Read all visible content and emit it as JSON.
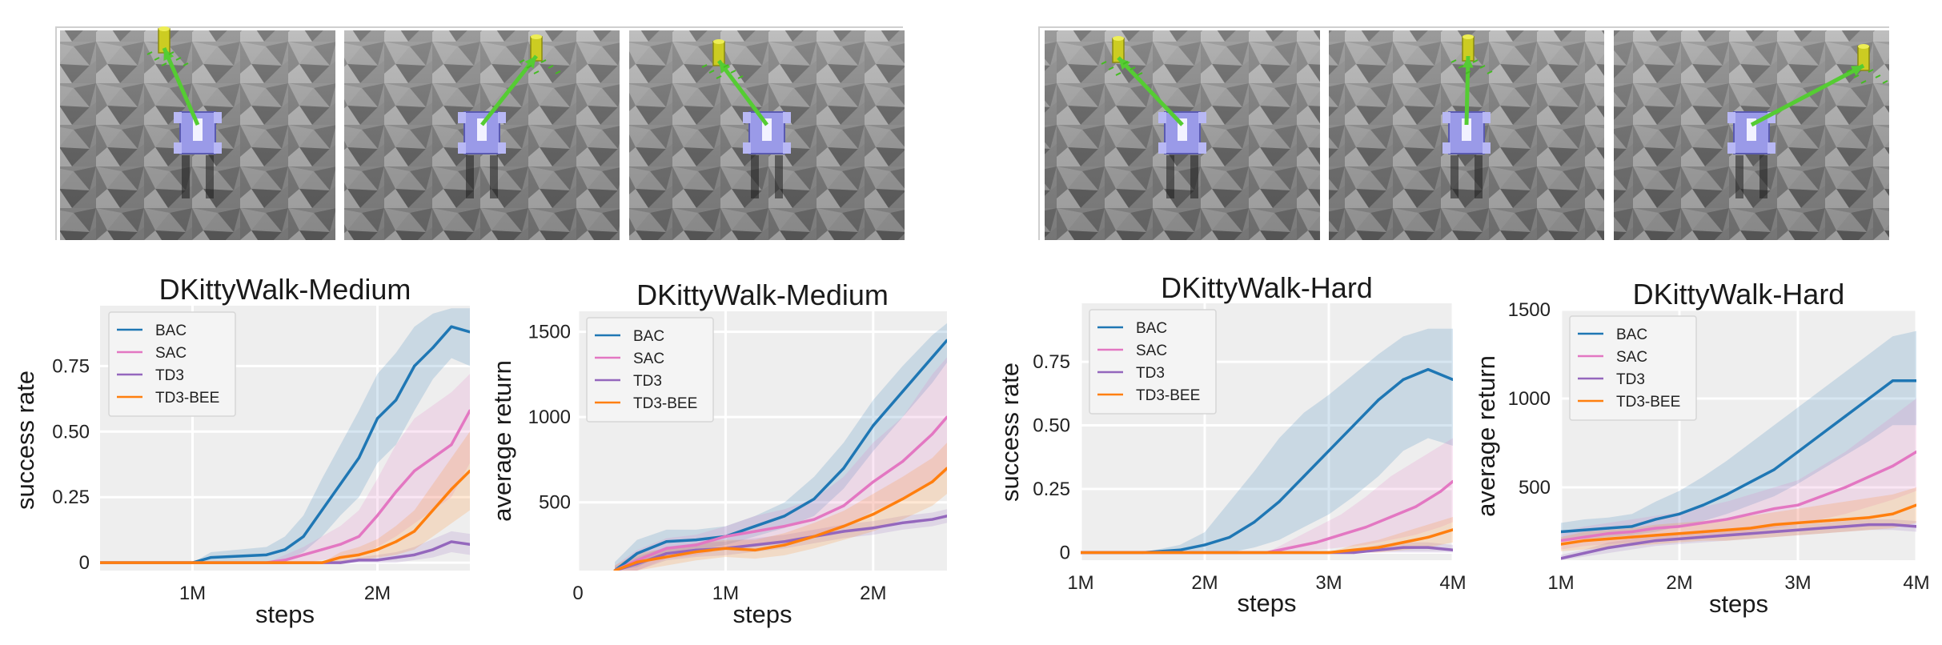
{
  "colors": {
    "BAC": "#1f77b4",
    "SAC": "#e377c2",
    "TD3": "#9467bd",
    "TD3-BEE": "#ff7f0e",
    "plot_bg": "#eeeeee",
    "grid": "#ffffff"
  },
  "images": [
    {
      "panel": "left",
      "frames": 3,
      "content": "D'Kitty robot walking on rough grey terrain toward a yellow target cylinder, green arrow showing heading"
    },
    {
      "panel": "right",
      "frames": 3,
      "content": "D'Kitty robot walking on rough grey terrain toward a yellow target cylinder, green arrow showing heading"
    }
  ],
  "chart_data": [
    {
      "type": "line",
      "title": "DKittyWalk-Medium",
      "xlabel": "steps",
      "ylabel": "success rate",
      "xlim": [
        0.5,
        2.5
      ],
      "ylim": [
        -0.03,
        0.98
      ],
      "xticks": [
        1,
        2
      ],
      "xticklabels": [
        "1M",
        "2M"
      ],
      "yticks": [
        0,
        0.25,
        0.5,
        0.75
      ],
      "yticklabels": [
        "0",
        "0.25",
        "0.50",
        "0.75"
      ],
      "legend": "top-left",
      "series": [
        {
          "name": "BAC",
          "x": [
            0.5,
            1.0,
            1.1,
            1.4,
            1.5,
            1.6,
            1.7,
            1.8,
            1.9,
            2.0,
            2.1,
            2.2,
            2.3,
            2.4,
            2.5
          ],
          "y": [
            0,
            0,
            0.02,
            0.03,
            0.05,
            0.1,
            0.2,
            0.3,
            0.4,
            0.55,
            0.62,
            0.75,
            0.82,
            0.9,
            0.88
          ],
          "lo": [
            0,
            0,
            0,
            0,
            0.01,
            0.04,
            0.1,
            0.18,
            0.25,
            0.38,
            0.45,
            0.58,
            0.7,
            0.78,
            0.75
          ],
          "hi": [
            0,
            0,
            0.04,
            0.06,
            0.1,
            0.18,
            0.32,
            0.45,
            0.58,
            0.72,
            0.8,
            0.9,
            0.95,
            0.97,
            0.97
          ]
        },
        {
          "name": "SAC",
          "x": [
            0.5,
            1.4,
            1.5,
            1.6,
            1.7,
            1.8,
            1.9,
            2.0,
            2.1,
            2.2,
            2.3,
            2.4,
            2.5
          ],
          "y": [
            0,
            0,
            0.01,
            0.03,
            0.05,
            0.07,
            0.1,
            0.18,
            0.27,
            0.35,
            0.4,
            0.45,
            0.58
          ],
          "lo": [
            0,
            0,
            0,
            0,
            0.01,
            0.02,
            0.03,
            0.06,
            0.1,
            0.15,
            0.2,
            0.25,
            0.38
          ],
          "hi": [
            0,
            0,
            0.03,
            0.06,
            0.1,
            0.14,
            0.2,
            0.32,
            0.45,
            0.55,
            0.6,
            0.65,
            0.72
          ]
        },
        {
          "name": "TD3",
          "x": [
            0.5,
            1.7,
            1.8,
            1.9,
            2.0,
            2.1,
            2.2,
            2.3,
            2.4,
            2.5
          ],
          "y": [
            0,
            0,
            0,
            0.01,
            0.01,
            0.02,
            0.03,
            0.05,
            0.08,
            0.07
          ],
          "lo": [
            0,
            0,
            0,
            0,
            0,
            0,
            0.01,
            0.02,
            0.04,
            0.03
          ],
          "hi": [
            0,
            0,
            0.01,
            0.02,
            0.03,
            0.04,
            0.06,
            0.09,
            0.12,
            0.11
          ]
        },
        {
          "name": "TD3-BEE",
          "x": [
            0.5,
            1.7,
            1.8,
            1.9,
            2.0,
            2.1,
            2.2,
            2.3,
            2.4,
            2.5
          ],
          "y": [
            0,
            0,
            0.02,
            0.03,
            0.05,
            0.08,
            0.12,
            0.2,
            0.28,
            0.35
          ],
          "lo": [
            0,
            0,
            0,
            0.01,
            0.02,
            0.03,
            0.05,
            0.1,
            0.15,
            0.2
          ],
          "hi": [
            0,
            0,
            0.04,
            0.06,
            0.09,
            0.14,
            0.2,
            0.3,
            0.4,
            0.5
          ]
        }
      ]
    },
    {
      "type": "line",
      "title": "DKittyWalk-Medium",
      "xlabel": "steps",
      "ylabel": "average return",
      "xlim": [
        0,
        2.5
      ],
      "ylim": [
        100,
        1620
      ],
      "xticks": [
        0,
        1,
        2
      ],
      "xticklabels": [
        "0",
        "1M",
        "2M"
      ],
      "yticks": [
        500,
        1000,
        1500
      ],
      "yticklabels": [
        "500",
        "1000",
        "1500"
      ],
      "legend": "top-left",
      "series": [
        {
          "name": "BAC",
          "x": [
            0.25,
            0.4,
            0.6,
            0.8,
            1.0,
            1.2,
            1.4,
            1.6,
            1.8,
            2.0,
            2.2,
            2.4,
            2.5
          ],
          "y": [
            100,
            200,
            270,
            280,
            300,
            360,
            420,
            520,
            700,
            950,
            1150,
            1350,
            1450
          ],
          "lo": [
            100,
            120,
            200,
            220,
            250,
            300,
            350,
            420,
            580,
            800,
            1000,
            1200,
            1320
          ],
          "hi": [
            150,
            280,
            340,
            340,
            360,
            420,
            500,
            650,
            850,
            1100,
            1300,
            1480,
            1550
          ]
        },
        {
          "name": "SAC",
          "x": [
            0.25,
            0.4,
            0.6,
            0.8,
            1.0,
            1.2,
            1.4,
            1.6,
            1.8,
            2.0,
            2.2,
            2.4,
            2.5
          ],
          "y": [
            100,
            160,
            230,
            250,
            300,
            330,
            360,
            400,
            480,
            620,
            740,
            900,
            1000
          ],
          "lo": [
            100,
            100,
            170,
            190,
            230,
            250,
            280,
            300,
            350,
            450,
            520,
            620,
            680
          ],
          "hi": [
            130,
            220,
            290,
            310,
            360,
            420,
            460,
            520,
            650,
            850,
            1000,
            1250,
            1350
          ]
        },
        {
          "name": "TD3",
          "x": [
            0.25,
            0.4,
            0.6,
            0.8,
            1.0,
            1.2,
            1.4,
            1.6,
            1.8,
            2.0,
            2.2,
            2.4,
            2.5
          ],
          "y": [
            100,
            140,
            200,
            220,
            230,
            250,
            270,
            300,
            330,
            350,
            380,
            400,
            420
          ],
          "lo": [
            100,
            100,
            160,
            180,
            190,
            210,
            230,
            260,
            290,
            310,
            340,
            360,
            380
          ],
          "hi": [
            120,
            180,
            240,
            260,
            270,
            290,
            310,
            340,
            370,
            390,
            420,
            440,
            460
          ]
        },
        {
          "name": "TD3-BEE",
          "x": [
            0.25,
            0.4,
            0.6,
            0.8,
            1.0,
            1.2,
            1.4,
            1.6,
            1.8,
            2.0,
            2.2,
            2.4,
            2.5
          ],
          "y": [
            100,
            150,
            180,
            210,
            230,
            220,
            250,
            300,
            360,
            430,
            520,
            620,
            700
          ],
          "lo": [
            100,
            100,
            130,
            160,
            180,
            170,
            190,
            230,
            280,
            330,
            400,
            480,
            550
          ],
          "hi": [
            130,
            200,
            230,
            260,
            280,
            280,
            320,
            380,
            450,
            550,
            650,
            760,
            850
          ]
        }
      ]
    },
    {
      "type": "line",
      "title": "DKittyWalk-Hard",
      "xlabel": "steps",
      "ylabel": "success rate",
      "xlim": [
        1,
        4
      ],
      "ylim": [
        -0.03,
        0.98
      ],
      "xticks": [
        1,
        2,
        3,
        4
      ],
      "xticklabels": [
        "1M",
        "2M",
        "3M",
        "4M"
      ],
      "yticks": [
        0,
        0.25,
        0.5,
        0.75
      ],
      "yticklabels": [
        "0",
        "0.25",
        "0.50",
        "0.75"
      ],
      "legend": "top-left",
      "series": [
        {
          "name": "BAC",
          "x": [
            1.0,
            1.5,
            1.8,
            2.0,
            2.2,
            2.4,
            2.6,
            2.8,
            3.0,
            3.2,
            3.4,
            3.6,
            3.8,
            4.0
          ],
          "y": [
            0,
            0,
            0.01,
            0.03,
            0.06,
            0.12,
            0.2,
            0.3,
            0.4,
            0.5,
            0.6,
            0.68,
            0.72,
            0.68
          ],
          "lo": [
            0,
            0,
            0,
            0,
            0,
            0.02,
            0.05,
            0.1,
            0.15,
            0.22,
            0.3,
            0.4,
            0.45,
            0.42
          ],
          "hi": [
            0,
            0,
            0.03,
            0.08,
            0.2,
            0.32,
            0.45,
            0.55,
            0.62,
            0.7,
            0.78,
            0.85,
            0.88,
            0.88
          ]
        },
        {
          "name": "SAC",
          "x": [
            1.0,
            2.5,
            2.7,
            2.9,
            3.1,
            3.3,
            3.5,
            3.7,
            3.9,
            4.0
          ],
          "y": [
            0,
            0,
            0.02,
            0.04,
            0.07,
            0.1,
            0.14,
            0.18,
            0.24,
            0.28
          ],
          "lo": [
            0,
            0,
            0,
            0.01,
            0.02,
            0.03,
            0.05,
            0.07,
            0.1,
            0.12
          ],
          "hi": [
            0,
            0,
            0.05,
            0.1,
            0.15,
            0.22,
            0.3,
            0.36,
            0.42,
            0.45
          ]
        },
        {
          "name": "TD3",
          "x": [
            1.0,
            3.0,
            3.2,
            3.4,
            3.6,
            3.8,
            4.0
          ],
          "y": [
            0,
            0,
            0,
            0.01,
            0.02,
            0.02,
            0.01
          ],
          "lo": [
            0,
            0,
            0,
            0,
            0,
            0,
            0
          ],
          "hi": [
            0,
            0,
            0.01,
            0.03,
            0.04,
            0.04,
            0.03
          ]
        },
        {
          "name": "TD3-BEE",
          "x": [
            1.0,
            3.0,
            3.2,
            3.4,
            3.6,
            3.8,
            4.0
          ],
          "y": [
            0,
            0,
            0.01,
            0.02,
            0.04,
            0.06,
            0.09
          ],
          "lo": [
            0,
            0,
            0,
            0,
            0.01,
            0.02,
            0.04
          ],
          "hi": [
            0,
            0,
            0.03,
            0.05,
            0.08,
            0.11,
            0.14
          ]
        }
      ]
    },
    {
      "type": "line",
      "title": "DKittyWalk-Hard",
      "xlabel": "steps",
      "ylabel": "average return",
      "xlim": [
        1,
        4
      ],
      "ylim": [
        90,
        1500
      ],
      "xticks": [
        1,
        2,
        3,
        4
      ],
      "xticklabels": [
        "1M",
        "2M",
        "3M",
        "4M"
      ],
      "yticks": [
        500,
        1000,
        1500
      ],
      "yticklabels": [
        "500",
        "1000",
        "1500"
      ],
      "legend": "top-left",
      "series": [
        {
          "name": "BAC",
          "x": [
            1.0,
            1.2,
            1.4,
            1.6,
            1.8,
            2.0,
            2.2,
            2.4,
            2.6,
            2.8,
            3.0,
            3.2,
            3.4,
            3.6,
            3.8,
            4.0
          ],
          "y": [
            250,
            260,
            270,
            280,
            320,
            350,
            400,
            460,
            530,
            600,
            700,
            800,
            900,
            1000,
            1100,
            1100
          ],
          "lo": [
            200,
            210,
            220,
            230,
            250,
            280,
            310,
            350,
            400,
            450,
            520,
            600,
            680,
            760,
            850,
            850
          ],
          "hi": [
            300,
            320,
            330,
            350,
            420,
            480,
            560,
            650,
            750,
            850,
            950,
            1050,
            1150,
            1250,
            1350,
            1380
          ]
        },
        {
          "name": "SAC",
          "x": [
            1.0,
            1.2,
            1.4,
            1.6,
            1.8,
            2.0,
            2.2,
            2.4,
            2.6,
            2.8,
            3.0,
            3.2,
            3.4,
            3.6,
            3.8,
            4.0
          ],
          "y": [
            200,
            220,
            240,
            250,
            270,
            280,
            300,
            320,
            350,
            380,
            400,
            450,
            500,
            560,
            620,
            700
          ],
          "lo": [
            150,
            170,
            180,
            190,
            200,
            210,
            220,
            230,
            250,
            270,
            290,
            320,
            350,
            390,
            430,
            480
          ],
          "hi": [
            250,
            280,
            300,
            320,
            340,
            360,
            390,
            420,
            460,
            500,
            540,
            620,
            700,
            800,
            900,
            1000
          ]
        },
        {
          "name": "TD3",
          "x": [
            1.0,
            1.2,
            1.4,
            1.6,
            1.8,
            2.0,
            2.2,
            2.4,
            2.6,
            2.8,
            3.0,
            3.2,
            3.4,
            3.6,
            3.8,
            4.0
          ],
          "y": [
            100,
            130,
            160,
            180,
            200,
            210,
            220,
            230,
            240,
            250,
            260,
            270,
            280,
            290,
            290,
            280
          ],
          "lo": [
            90,
            110,
            130,
            150,
            170,
            180,
            190,
            200,
            210,
            220,
            230,
            240,
            250,
            260,
            260,
            250
          ],
          "hi": [
            120,
            150,
            190,
            210,
            230,
            240,
            250,
            260,
            270,
            280,
            290,
            300,
            310,
            320,
            320,
            310
          ]
        },
        {
          "name": "TD3-BEE",
          "x": [
            1.0,
            1.2,
            1.4,
            1.6,
            1.8,
            2.0,
            2.2,
            2.4,
            2.6,
            2.8,
            3.0,
            3.2,
            3.4,
            3.6,
            3.8,
            4.0
          ],
          "y": [
            180,
            200,
            210,
            220,
            230,
            240,
            250,
            260,
            270,
            290,
            300,
            310,
            320,
            330,
            350,
            400
          ],
          "lo": [
            140,
            150,
            160,
            170,
            180,
            190,
            200,
            200,
            210,
            220,
            230,
            240,
            250,
            260,
            270,
            300
          ],
          "hi": [
            220,
            250,
            260,
            270,
            290,
            300,
            310,
            320,
            340,
            360,
            380,
            400,
            420,
            440,
            460,
            500
          ]
        }
      ]
    }
  ]
}
